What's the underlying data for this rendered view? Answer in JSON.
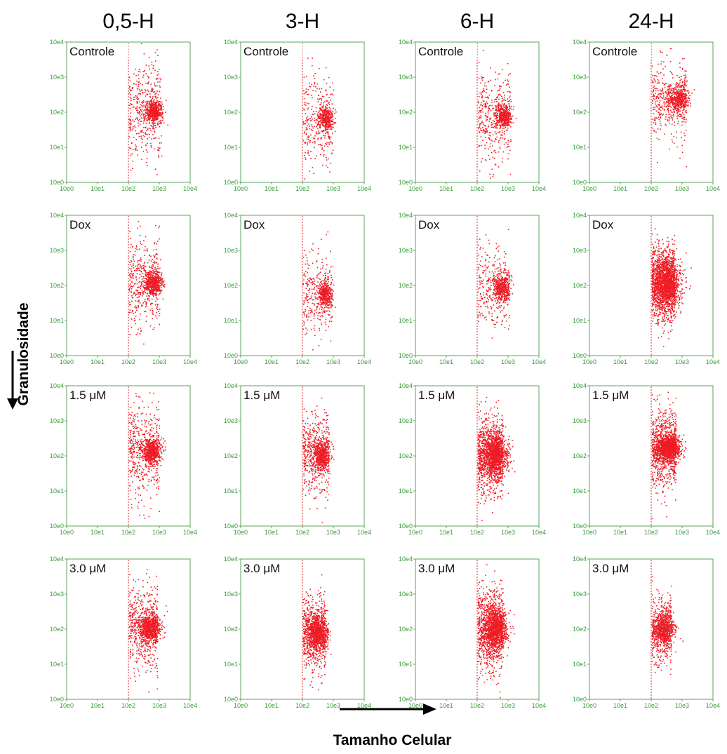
{
  "chart_data": {
    "type": "scatter",
    "columns": [
      "0,5-H",
      "3-H",
      "6-H",
      "24-H"
    ],
    "rows": [
      "Controle",
      "Dox",
      "1.5 μM",
      "3.0 μM"
    ],
    "xlabel": "Tamanho Celular",
    "ylabel": "Granulosidade",
    "x_scale": "log",
    "y_scale": "log",
    "xlim": [
      1,
      10000
    ],
    "ylim": [
      1,
      10000
    ],
    "x_tick_labels": [
      "10e0",
      "10e1",
      "10e2",
      "10e3",
      "10e4"
    ],
    "y_tick_labels": [
      "10e0",
      "10e1",
      "10e2",
      "10e3",
      "10e4"
    ],
    "gate_x": 100,
    "colors": {
      "points": "#ee1c25",
      "gate": "#e0202a",
      "frame": "#5aa55a",
      "ticks": "#3a9a3a"
    },
    "panels": [
      {
        "column": "0,5-H",
        "condition": "Controle",
        "cluster_center": [
          650,
          110
        ],
        "cluster_spread": [
          0.13,
          0.16
        ],
        "scatter_spread": [
          0.28,
          0.7
        ],
        "n_points": 900
      },
      {
        "column": "3-H",
        "condition": "Controle",
        "cluster_center": [
          550,
          70
        ],
        "cluster_spread": [
          0.12,
          0.17
        ],
        "scatter_spread": [
          0.25,
          0.65
        ],
        "n_points": 650
      },
      {
        "column": "6-H",
        "condition": "Controle",
        "cluster_center": [
          680,
          80
        ],
        "cluster_spread": [
          0.13,
          0.17
        ],
        "scatter_spread": [
          0.27,
          0.65
        ],
        "n_points": 800
      },
      {
        "column": "24-H",
        "condition": "Controle",
        "cluster_center": [
          750,
          250
        ],
        "cluster_spread": [
          0.15,
          0.18
        ],
        "scatter_spread": [
          0.3,
          0.55
        ],
        "n_points": 850
      },
      {
        "column": "0,5-H",
        "condition": "Dox",
        "cluster_center": [
          600,
          120
        ],
        "cluster_spread": [
          0.14,
          0.18
        ],
        "scatter_spread": [
          0.28,
          0.65
        ],
        "n_points": 900
      },
      {
        "column": "3-H",
        "condition": "Dox",
        "cluster_center": [
          520,
          60
        ],
        "cluster_spread": [
          0.12,
          0.2
        ],
        "scatter_spread": [
          0.25,
          0.6
        ],
        "n_points": 650
      },
      {
        "column": "6-H",
        "condition": "Dox",
        "cluster_center": [
          600,
          90
        ],
        "cluster_spread": [
          0.14,
          0.2
        ],
        "scatter_spread": [
          0.27,
          0.6
        ],
        "n_points": 750
      },
      {
        "column": "24-H",
        "condition": "Dox",
        "cluster_center": [
          320,
          120
        ],
        "cluster_spread": [
          0.22,
          0.35
        ],
        "scatter_spread": [
          0.3,
          0.55
        ],
        "n_points": 2200
      },
      {
        "column": "0,5-H",
        "condition": "1.5 μM",
        "cluster_center": [
          550,
          140
        ],
        "cluster_spread": [
          0.15,
          0.18
        ],
        "scatter_spread": [
          0.28,
          0.65
        ],
        "n_points": 1000
      },
      {
        "column": "3-H",
        "condition": "1.5 μM",
        "cluster_center": [
          400,
          110
        ],
        "cluster_spread": [
          0.15,
          0.22
        ],
        "scatter_spread": [
          0.25,
          0.55
        ],
        "n_points": 1000
      },
      {
        "column": "6-H",
        "condition": "1.5 μM",
        "cluster_center": [
          380,
          110
        ],
        "cluster_spread": [
          0.2,
          0.3
        ],
        "scatter_spread": [
          0.28,
          0.6
        ],
        "n_points": 1900
      },
      {
        "column": "24-H",
        "condition": "1.5 μM",
        "cluster_center": [
          350,
          170
        ],
        "cluster_spread": [
          0.18,
          0.18
        ],
        "scatter_spread": [
          0.3,
          0.55
        ],
        "n_points": 1800
      },
      {
        "column": "0,5-H",
        "condition": "3.0 μM",
        "cluster_center": [
          500,
          110
        ],
        "cluster_spread": [
          0.16,
          0.2
        ],
        "scatter_spread": [
          0.28,
          0.6
        ],
        "n_points": 1200
      },
      {
        "column": "3-H",
        "condition": "3.0 μM",
        "cluster_center": [
          300,
          80
        ],
        "cluster_spread": [
          0.17,
          0.25
        ],
        "scatter_spread": [
          0.25,
          0.55
        ],
        "n_points": 1400
      },
      {
        "column": "6-H",
        "condition": "3.0 μM",
        "cluster_center": [
          380,
          100
        ],
        "cluster_spread": [
          0.2,
          0.3
        ],
        "scatter_spread": [
          0.28,
          0.6
        ],
        "n_points": 1800
      },
      {
        "column": "24-H",
        "condition": "3.0 μM",
        "cluster_center": [
          250,
          100
        ],
        "cluster_spread": [
          0.17,
          0.22
        ],
        "scatter_spread": [
          0.3,
          0.5
        ],
        "n_points": 1000
      }
    ]
  }
}
